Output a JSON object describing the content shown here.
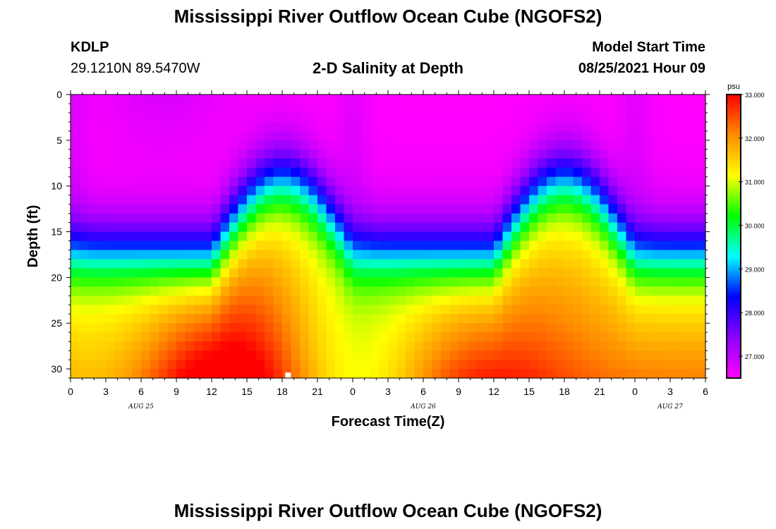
{
  "page": {
    "title": "Mississippi River Outflow Ocean Cube (NGOFS2)",
    "station": "KDLP",
    "coords": "29.1210N  89.5470W",
    "subtitle": "2-D Salinity at Depth",
    "model_start_label": "Model Start Time",
    "model_start_value": "08/25/2021 Hour 09",
    "footer_title": "Mississippi River Outflow Ocean Cube (NGOFS2)"
  },
  "chart_data": {
    "type": "heatmap",
    "xlabel": "Forecast Time(Z)",
    "ylabel": "Depth (ft)",
    "x_ticks": [
      "0",
      "3",
      "6",
      "9",
      "12",
      "15",
      "18",
      "21",
      "0",
      "3",
      "6",
      "9",
      "12",
      "15",
      "18",
      "21",
      "0",
      "3",
      "6"
    ],
    "date_labels": [
      {
        "label": "AUG 25",
        "at_tick": 2
      },
      {
        "label": "AUG 26",
        "at_tick": 10
      },
      {
        "label": "AUG 27",
        "at_tick": 17
      }
    ],
    "x_range_hours": [
      0,
      54
    ],
    "y_ticks": [
      0,
      5,
      10,
      15,
      20,
      25,
      30
    ],
    "ylim": [
      0,
      31
    ],
    "y_inverted": true,
    "colorbar": {
      "unit": "psu",
      "range": [
        26.5,
        33.0
      ],
      "ticks": [
        "33.000",
        "32.000",
        "31.000",
        "30.000",
        "29.000",
        "28.000",
        "27.000"
      ],
      "tick_values": [
        33,
        32,
        31,
        30,
        29,
        28,
        27
      ],
      "colors": [
        "#ff00ff",
        "#8c00ff",
        "#0000ff",
        "#00ffff",
        "#00ff00",
        "#ffff00",
        "#ff8c00",
        "#ff0000"
      ]
    },
    "fields": {
      "surface_salinity_min": 26.5,
      "bottom_salinity_max": 33.0,
      "marker_at": {
        "hour": 18.5,
        "depth_ft": 30.7
      }
    }
  }
}
